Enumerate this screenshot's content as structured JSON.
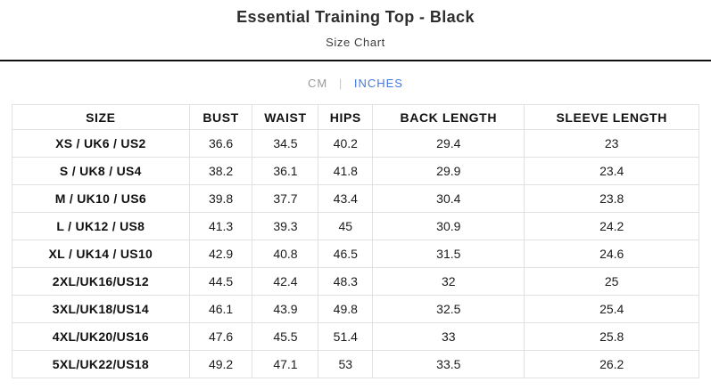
{
  "header": {
    "title": "Essential Training Top - Black",
    "subtitle": "Size Chart"
  },
  "unit_toggle": {
    "cm_label": "CM",
    "separator": "|",
    "inches_label": "INCHES",
    "selected": "INCHES",
    "selected_color": "#4478e0",
    "unselected_color": "#9a9a9a"
  },
  "table": {
    "columns": [
      "SIZE",
      "BUST",
      "WAIST",
      "HIPS",
      "BACK LENGTH",
      "SLEEVE LENGTH"
    ],
    "rows": [
      [
        "XS / UK6 / US2",
        "36.6",
        "34.5",
        "40.2",
        "29.4",
        "23"
      ],
      [
        "S / UK8 / US4",
        "38.2",
        "36.1",
        "41.8",
        "29.9",
        "23.4"
      ],
      [
        "M / UK10 / US6",
        "39.8",
        "37.7",
        "43.4",
        "30.4",
        "23.8"
      ],
      [
        "L / UK12 / US8",
        "41.3",
        "39.3",
        "45",
        "30.9",
        "24.2"
      ],
      [
        "XL / UK14 / US10",
        "42.9",
        "40.8",
        "46.5",
        "31.5",
        "24.6"
      ],
      [
        "2XL/UK16/US12",
        "44.5",
        "42.4",
        "48.3",
        "32",
        "25"
      ],
      [
        "3XL/UK18/US14",
        "46.1",
        "43.9",
        "49.8",
        "32.5",
        "25.4"
      ],
      [
        "4XL/UK20/US16",
        "47.6",
        "45.5",
        "51.4",
        "33",
        "25.8"
      ],
      [
        "5XL/UK22/US18",
        "49.2",
        "47.1",
        "53",
        "33.5",
        "26.2"
      ]
    ]
  }
}
